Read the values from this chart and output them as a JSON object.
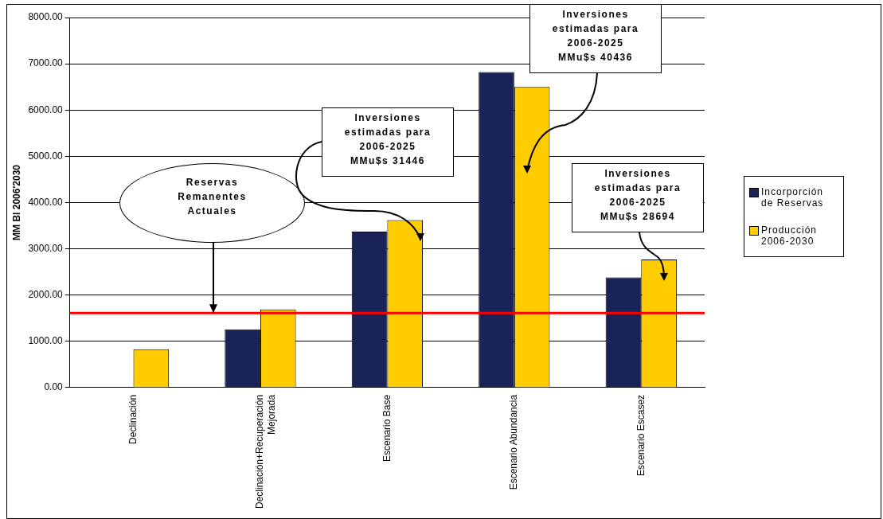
{
  "chart_data": {
    "type": "bar",
    "ylabel": "MM Bl 2006'2030",
    "categories": [
      "Declinación",
      "Declinación+Recuperación Mejorada",
      "Escenario Base",
      "Escenario Abundancia",
      "Escenario Escasez"
    ],
    "series": [
      {
        "name": "Incorporción de Reservas",
        "color": "#1a2357",
        "values": [
          null,
          1260,
          3370,
          6820,
          2380
        ]
      },
      {
        "name": "Producción 2006-2030",
        "color": "#ffcc00",
        "values": [
          830,
          1690,
          3620,
          6500,
          2770
        ]
      }
    ],
    "ylim": [
      0,
      8000
    ],
    "yticks": [
      {
        "value": 0,
        "label": "0.00"
      },
      {
        "value": 1000,
        "label": "1000.00"
      },
      {
        "value": 2000,
        "label": "2000.00"
      },
      {
        "value": 3000,
        "label": "3000.00"
      },
      {
        "value": 4000,
        "label": "4000.00"
      },
      {
        "value": 5000,
        "label": "5000.00"
      },
      {
        "value": 6000,
        "label": "6000.00"
      },
      {
        "value": 7000,
        "label": "7000.00"
      },
      {
        "value": 8000,
        "label": "8000.00"
      }
    ],
    "grid": "y",
    "legend": "right",
    "ref_lines": [
      {
        "axis": "y",
        "value": 1610,
        "color": "#ff0000"
      }
    ],
    "annotations": [
      "Reservas Remanentes Actuales",
      "Inversiones estimadas para 2006-2025 MMu$s 31446",
      "Inversiones estimadas para 2006-2025 MMu$s 40436",
      "Inversiones estimadas para 2006-2025 MMu$s 28694"
    ]
  }
}
